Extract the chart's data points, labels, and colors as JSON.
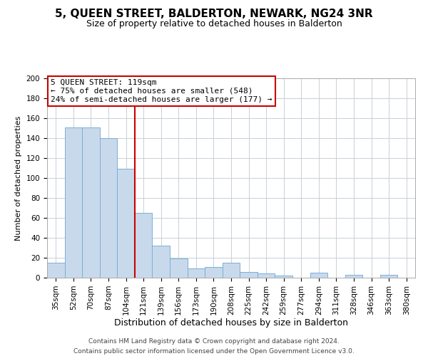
{
  "title": "5, QUEEN STREET, BALDERTON, NEWARK, NG24 3NR",
  "subtitle": "Size of property relative to detached houses in Balderton",
  "xlabel": "Distribution of detached houses by size in Balderton",
  "ylabel": "Number of detached properties",
  "bar_labels": [
    "35sqm",
    "52sqm",
    "70sqm",
    "87sqm",
    "104sqm",
    "121sqm",
    "139sqm",
    "156sqm",
    "173sqm",
    "190sqm",
    "208sqm",
    "225sqm",
    "242sqm",
    "259sqm",
    "277sqm",
    "294sqm",
    "311sqm",
    "328sqm",
    "346sqm",
    "363sqm",
    "380sqm"
  ],
  "bar_values": [
    15,
    151,
    151,
    140,
    109,
    65,
    32,
    19,
    9,
    11,
    15,
    6,
    4,
    2,
    0,
    5,
    0,
    3,
    0,
    3,
    0
  ],
  "bar_color": "#c8d9ec",
  "bar_edge_color": "#7bafd4",
  "vline_x_index": 5,
  "vline_color": "#cc0000",
  "annotation_title": "5 QUEEN STREET: 119sqm",
  "annotation_line1": "← 75% of detached houses are smaller (548)",
  "annotation_line2": "24% of semi-detached houses are larger (177) →",
  "annotation_box_color": "#ffffff",
  "annotation_box_edge": "#cc0000",
  "ylim": [
    0,
    200
  ],
  "yticks": [
    0,
    20,
    40,
    60,
    80,
    100,
    120,
    140,
    160,
    180,
    200
  ],
  "grid_color": "#c8d0d8",
  "footer1": "Contains HM Land Registry data © Crown copyright and database right 2024.",
  "footer2": "Contains public sector information licensed under the Open Government Licence v3.0.",
  "title_fontsize": 11,
  "subtitle_fontsize": 9,
  "xlabel_fontsize": 9,
  "ylabel_fontsize": 8,
  "tick_fontsize": 7.5,
  "annotation_fontsize": 8,
  "footer_fontsize": 6.5
}
